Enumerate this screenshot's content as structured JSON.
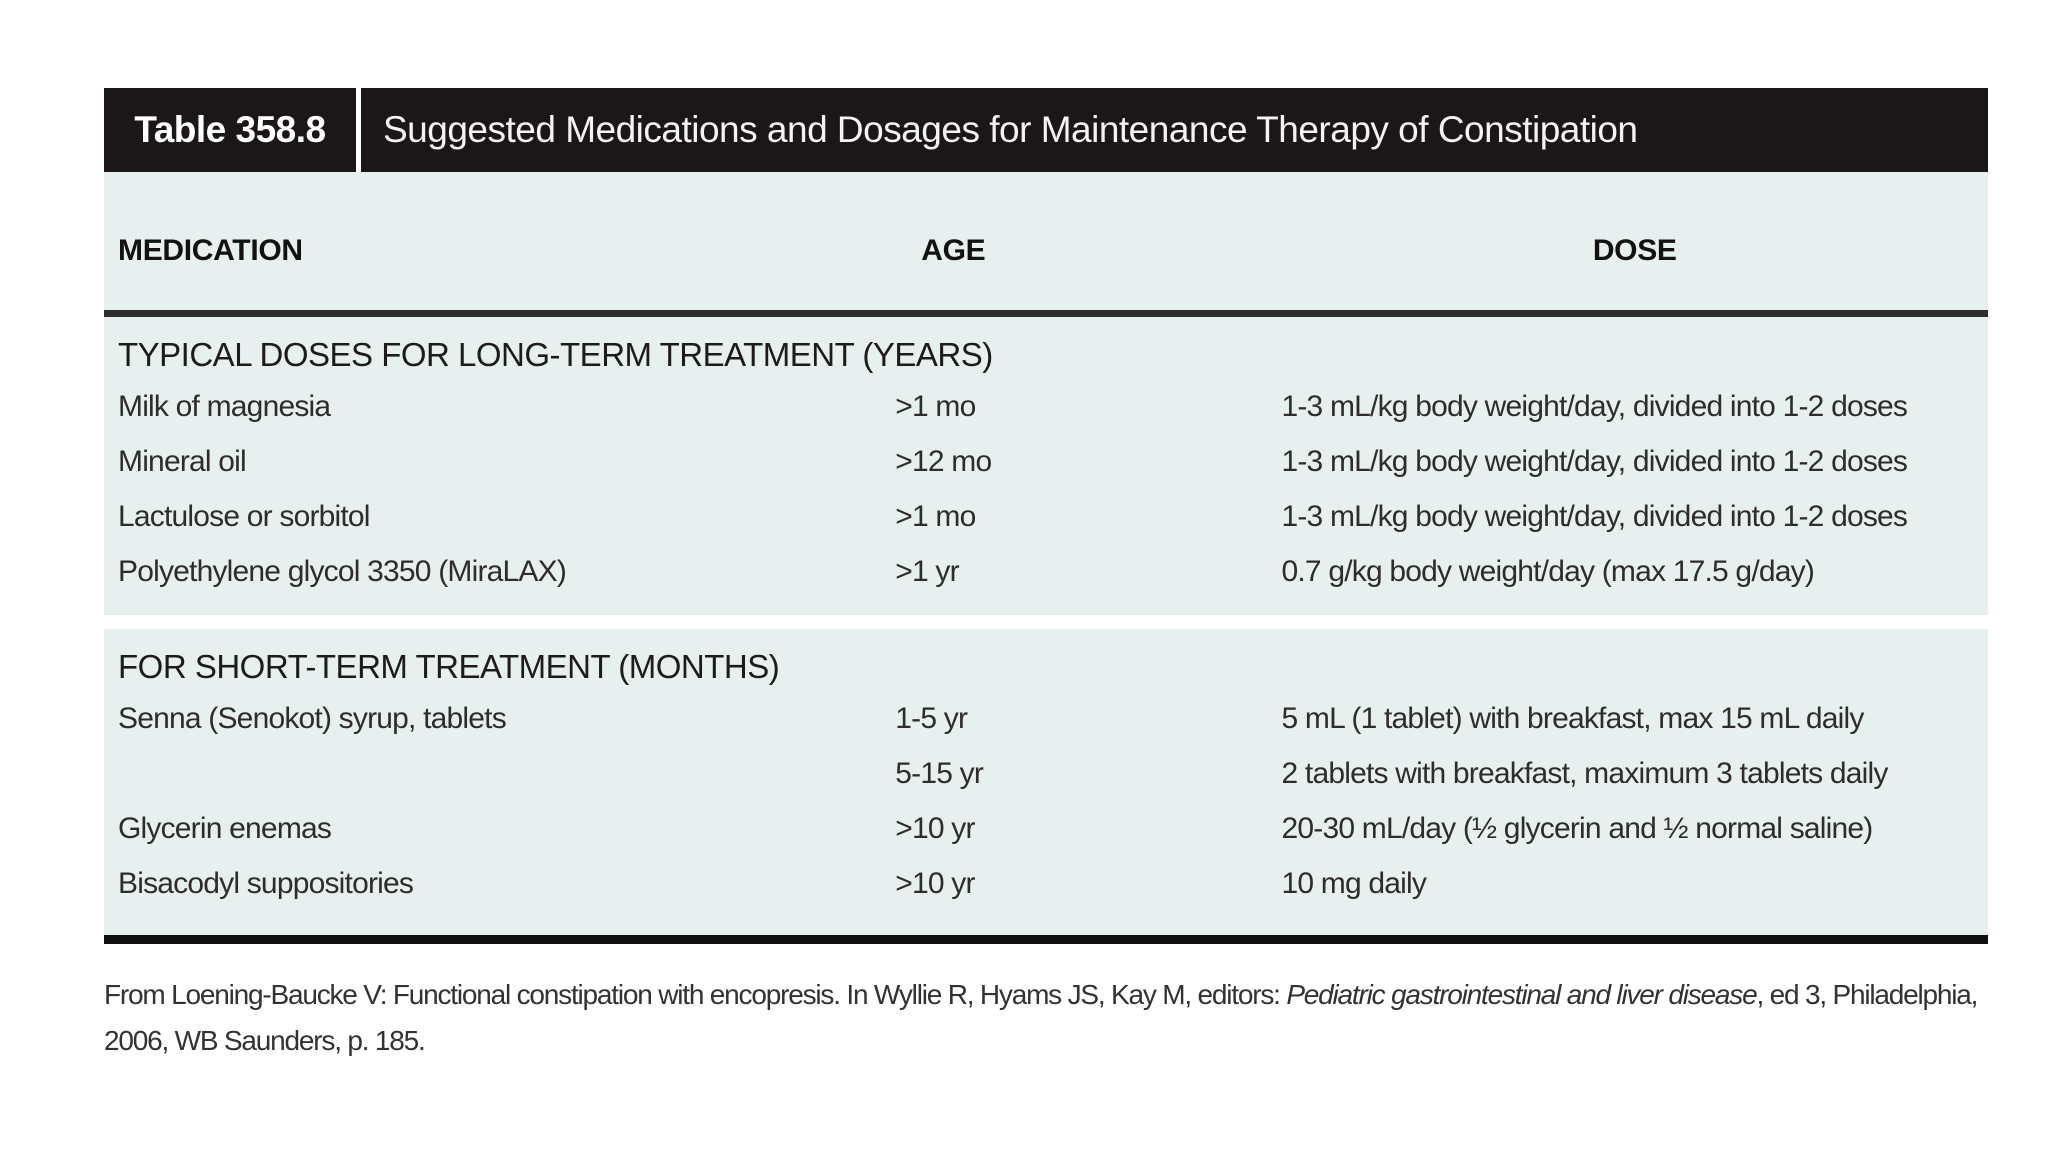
{
  "table": {
    "number_label": "Table 358.8",
    "title": "Suggested Medications and Dosages for Maintenance Therapy of Constipation",
    "header_bg": "#1b1718",
    "body_bg": "#e7efef",
    "columns": [
      "MEDICATION",
      "AGE",
      "DOSE"
    ],
    "sections": [
      {
        "heading": "TYPICAL DOSES FOR LONG-TERM TREATMENT (YEARS)",
        "rows": [
          {
            "medication": "Milk of magnesia",
            "age": ">1 mo",
            "dose": "1-3 mL/kg body weight/day, divided into 1-2 doses"
          },
          {
            "medication": "Mineral oil",
            "age": ">12 mo",
            "dose": "1-3 mL/kg body weight/day, divided into 1-2 doses"
          },
          {
            "medication": "Lactulose or sorbitol",
            "age": ">1 mo",
            "dose": "1-3 mL/kg body weight/day, divided into 1-2 doses"
          },
          {
            "medication": "Polyethylene glycol 3350 (MiraLAX)",
            "age": ">1 yr",
            "dose": "0.7 g/kg body weight/day (max 17.5 g/day)"
          }
        ]
      },
      {
        "heading": "FOR SHORT-TERM TREATMENT (MONTHS)",
        "rows": [
          {
            "medication": "Senna (Senokot) syrup, tablets",
            "age": "1-5 yr",
            "dose": "5 mL (1 tablet) with breakfast, max 15 mL daily"
          },
          {
            "medication": "",
            "age": "5-15 yr",
            "dose": "2 tablets with breakfast, maximum 3 tablets daily"
          },
          {
            "medication": "Glycerin enemas",
            "age": ">10 yr",
            "dose": "20-30 mL/day (½ glycerin and ½ normal saline)"
          },
          {
            "medication": "Bisacodyl suppositories",
            "age": ">10 yr",
            "dose": "10 mg daily"
          }
        ]
      }
    ]
  },
  "footer": {
    "line1_prefix": "From Loening-Baucke V: Functional constipation with encopresis. In Wyllie R, Hyams JS, Kay M, editors: ",
    "line1_italic": "Pediatric gastrointestinal and liver disease",
    "line1_suffix": ", ed 3, Philadelphia,",
    "line2": "2006, WB Saunders, p. 185."
  }
}
